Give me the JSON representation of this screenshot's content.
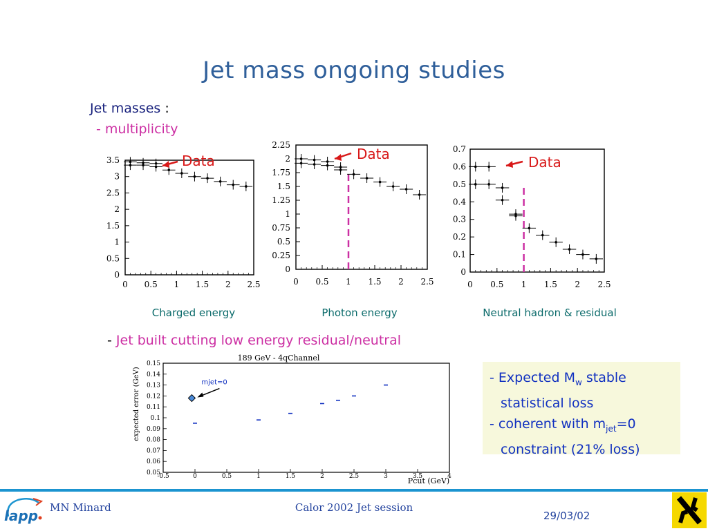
{
  "slide": {
    "title": "Jet mass ongoing studies",
    "section_label": "Jet masses",
    "section_colon": ":",
    "bullet_multiplicity": "- multiplicity",
    "bullet_cut_dash": "-",
    "bullet_cut_text": "Jet built cutting low energy residual/neutral"
  },
  "captions": {
    "charged": "Charged energy",
    "photon": "Photon energy",
    "neutral": "Neutral hadron & residual"
  },
  "annotation": "Data",
  "result_box": {
    "line1_prefix": "- Expected M",
    "line1_sub": "w",
    "line1_suffix": " stable",
    "line2": "statistical loss",
    "line3_prefix": "- coherent with m",
    "line3_sub": "jet",
    "line3_suffix": "=0",
    "line4": "constraint (21% loss)"
  },
  "footer": {
    "author": "MN Minard",
    "session": "Calor 2002 Jet session",
    "date": "29/03/02",
    "logo_text": "lapp"
  },
  "colors": {
    "title": "#2f5f9a",
    "magenta": "#cc2fa3",
    "footer_line": "#1b94d0",
    "box_bg": "#f7f8dc",
    "box_text": "#1030c0"
  },
  "chart_data": [
    {
      "type": "scatter",
      "name": "Charged energy",
      "xlim": [
        0,
        2.5
      ],
      "ylim": [
        0,
        3.5
      ],
      "xticks": [
        "0",
        "0.5",
        "1",
        "1.5",
        "2",
        "2.5"
      ],
      "yticks": [
        "0",
        "0.5",
        "1",
        "1.5",
        "2",
        "2.5",
        "3",
        "3.5"
      ],
      "series": [
        {
          "x": [
            0.1,
            0.35,
            0.6
          ],
          "y": [
            3.45,
            3.42,
            3.4
          ]
        },
        {
          "x": [
            0.1,
            0.35,
            0.6,
            0.85,
            1.1,
            1.35,
            1.6,
            1.85,
            2.1,
            2.35
          ],
          "y": [
            3.35,
            3.35,
            3.3,
            3.2,
            3.1,
            3.0,
            2.95,
            2.85,
            2.75,
            2.7
          ]
        }
      ]
    },
    {
      "type": "scatter",
      "name": "Photon energy",
      "xlim": [
        0,
        2.5
      ],
      "ylim": [
        0,
        2.25
      ],
      "xticks": [
        "0",
        "0.5",
        "1",
        "1.5",
        "2",
        "2.5"
      ],
      "yticks": [
        "0",
        "0.25",
        "0.5",
        "0.75",
        "1",
        "1.25",
        "1.5",
        "1.75",
        "2",
        "2.25"
      ],
      "cut_x": 1,
      "series": [
        {
          "x": [
            0.1,
            0.35,
            0.6,
            0.85
          ],
          "y": [
            2.0,
            1.98,
            1.95,
            1.85
          ]
        },
        {
          "x": [
            0.1,
            0.35,
            0.6,
            0.85,
            1.1,
            1.35,
            1.6,
            1.85,
            2.1,
            2.35
          ],
          "y": [
            1.92,
            1.9,
            1.88,
            1.8,
            1.72,
            1.65,
            1.58,
            1.5,
            1.45,
            1.35
          ]
        }
      ]
    },
    {
      "type": "scatter",
      "name": "Neutral hadron & residual",
      "xlim": [
        0,
        2.5
      ],
      "ylim": [
        0,
        0.7
      ],
      "xticks": [
        "0",
        "0.5",
        "1",
        "1.5",
        "2",
        "2.5"
      ],
      "yticks": [
        "0",
        "0.1",
        "0.2",
        "0.3",
        "0.4",
        "0.5",
        "0.6",
        "0.7"
      ],
      "cut_x": 1,
      "series": [
        {
          "x": [
            0.1,
            0.35,
            0.6,
            0.85
          ],
          "y": [
            0.6,
            0.6,
            0.48,
            0.33
          ]
        },
        {
          "x": [
            0.1,
            0.35,
            0.6,
            0.85,
            1.1,
            1.35,
            1.6,
            1.85,
            2.1,
            2.35
          ],
          "y": [
            0.5,
            0.5,
            0.41,
            0.32,
            0.25,
            0.21,
            0.17,
            0.13,
            0.1,
            0.075
          ]
        }
      ]
    },
    {
      "type": "scatter",
      "title": "189 GeV - 4qChannel",
      "xlabel": "Pcut (GeV)",
      "ylabel": "expected error (GeV)",
      "xlim": [
        -0.5,
        4
      ],
      "ylim": [
        0.05,
        0.15
      ],
      "xticks": [
        "-0.5",
        "0",
        "0.5",
        "1",
        "1.5",
        "2",
        "2.5",
        "3",
        "3.5",
        "4"
      ],
      "yticks": [
        "0.05",
        "0.06",
        "0.07",
        "0.08",
        "0.09",
        "0.1",
        "0.11",
        "0.12",
        "0.13",
        "0.14",
        "0.15"
      ],
      "series": [
        {
          "name": "jet built cutting",
          "x": [
            0,
            1,
            1.5,
            2,
            2.25,
            2.5,
            3
          ],
          "y": [
            0.095,
            0.098,
            0.104,
            0.113,
            0.116,
            0.12,
            0.13
          ]
        },
        {
          "name": "mjet=0",
          "x": [
            -0.05
          ],
          "y": [
            0.118
          ]
        }
      ],
      "annotation": "mjet=0"
    }
  ]
}
